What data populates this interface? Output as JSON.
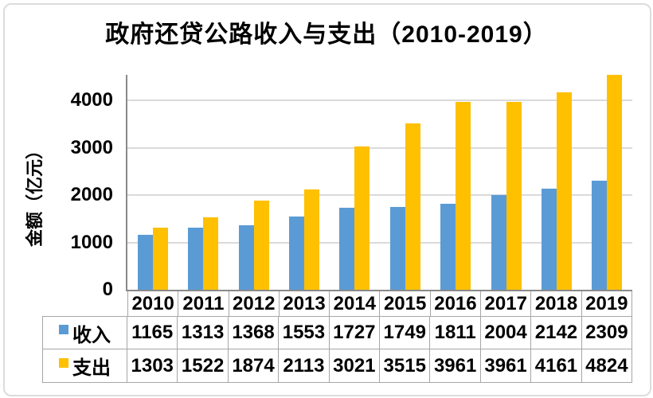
{
  "title": "政府还贷公路收入与支出（2010-2019）",
  "y_axis": {
    "label": "金额（亿元）",
    "ticks": [
      0,
      1000,
      2000,
      3000,
      4000
    ]
  },
  "colors": {
    "income": "#5B9BD5",
    "expense": "#FFC000",
    "gridline": "#DADADA",
    "axis": "#8A8A8A",
    "table_border": "#A6A6A6",
    "text": "#000000",
    "background": "#FFFFFF"
  },
  "chart_data": {
    "type": "bar",
    "title": "政府还贷公路收入与支出（2010-2019）",
    "xlabel": "",
    "ylabel": "金额（亿元）",
    "categories": [
      "2010",
      "2011",
      "2012",
      "2013",
      "2014",
      "2015",
      "2016",
      "2017",
      "2018",
      "2019"
    ],
    "series": [
      {
        "id": "income",
        "name": "收入",
        "color": "#5B9BD5",
        "values": [
          1165,
          1313,
          1368,
          1553,
          1727,
          1749,
          1811,
          2004,
          2142,
          2309
        ]
      },
      {
        "id": "expense",
        "name": "支出",
        "color": "#FFC000",
        "values": [
          1303,
          1522,
          1874,
          2113,
          3021,
          3515,
          3961,
          3961,
          4161,
          4824
        ]
      }
    ],
    "yticks": [
      0,
      1000,
      2000,
      3000,
      4000
    ],
    "ylim": [
      0,
      4538
    ],
    "grid": true,
    "legend_position": "table-left",
    "data_table_shown": true
  }
}
